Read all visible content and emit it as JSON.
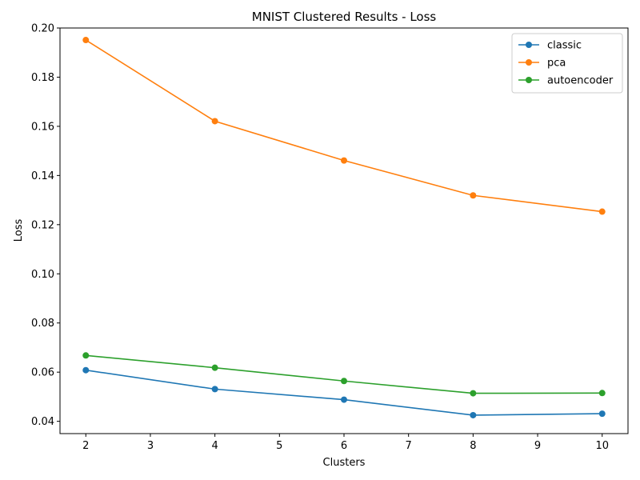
{
  "chart_data": {
    "type": "line",
    "title": "MNIST Clustered Results - Loss",
    "xlabel": "Clusters",
    "ylabel": "Loss",
    "x": [
      2,
      4,
      6,
      8,
      10
    ],
    "xlim": [
      1.6,
      10.4
    ],
    "ylim": [
      0.035,
      0.2
    ],
    "xticks": [
      2,
      3,
      4,
      5,
      6,
      7,
      8,
      9,
      10
    ],
    "yticks": [
      0.04,
      0.06,
      0.08,
      0.1,
      0.12,
      0.14,
      0.16,
      0.18,
      0.2
    ],
    "ytick_labels": [
      "0.04",
      "0.06",
      "0.08",
      "0.10",
      "0.12",
      "0.14",
      "0.16",
      "0.18",
      "0.20"
    ],
    "grid": false,
    "legend_position": "top-right",
    "series": [
      {
        "name": "classic",
        "color": "#1f77b4",
        "values": [
          0.0608,
          0.0531,
          0.0488,
          0.0425,
          0.0431
        ]
      },
      {
        "name": "pca",
        "color": "#ff7f0e",
        "values": [
          0.1951,
          0.1621,
          0.1461,
          0.1319,
          0.1253
        ]
      },
      {
        "name": "autoencoder",
        "color": "#2ca02c",
        "values": [
          0.0668,
          0.0618,
          0.0564,
          0.0514,
          0.0515
        ]
      }
    ]
  }
}
